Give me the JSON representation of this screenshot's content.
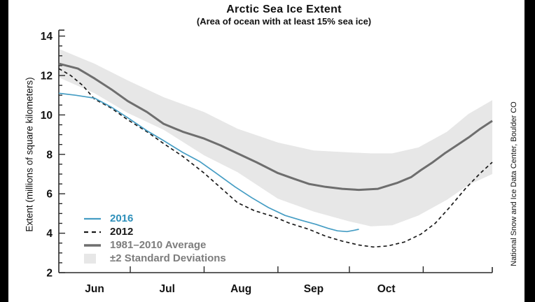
{
  "title": "Arctic Sea Ice Extent",
  "subtitle": "(Area of ocean with at least 15% sea ice)",
  "side_note": "National Snow and Ice Data Center, Boulder CO",
  "y_axis": {
    "label": "Extent (millions of square kilometers)",
    "min": 2,
    "max": 14,
    "major_step": 2,
    "minor_step": 0.5,
    "tick_labels": [
      "2",
      "4",
      "6",
      "8",
      "10",
      "12",
      "14"
    ]
  },
  "x_axis": {
    "month_labels": [
      "Jun",
      "Jul",
      "Aug",
      "Sep",
      "Oct"
    ],
    "tick_days": [
      30,
      61,
      92,
      122,
      153
    ],
    "month_label_days": [
      15,
      45.5,
      76.5,
      107,
      137.5
    ]
  },
  "colors": {
    "line_2016": "#459DC4",
    "text_2016": "#2D8FBA",
    "line_2012": "#1a1a1a",
    "line_average": "#6e6e6e",
    "band_fill": "#e7e7e7",
    "legend_gray_text": "#7d7d7d",
    "axis": "#2a2a2a"
  },
  "legend": {
    "items": [
      {
        "label": "2016",
        "swatch": "line-solid-blue"
      },
      {
        "label": "2012",
        "swatch": "line-dashed-black"
      },
      {
        "label": "1981–2010 Average",
        "swatch": "line-thick-gray"
      },
      {
        "label": "±2 Standard Deviations",
        "swatch": "filled-band"
      }
    ]
  },
  "chart_data": {
    "type": "line",
    "title": "Arctic Sea Ice Extent",
    "subtitle": "(Area of ocean with at least 15% sea ice)",
    "xlabel": "",
    "ylabel": "Extent (millions of square kilometers)",
    "x_unit": "days from Jun 1",
    "x_range": [
      0,
      182
    ],
    "ylim": [
      2,
      14
    ],
    "grid": false,
    "legend_position": "lower-left",
    "series": [
      {
        "name": "2016",
        "style": "solid",
        "width": 1.7,
        "points": [
          [
            0,
            11.1
          ],
          [
            7,
            11.0
          ],
          [
            15,
            10.85
          ],
          [
            22,
            10.4
          ],
          [
            29,
            9.85
          ],
          [
            37,
            9.2
          ],
          [
            44,
            8.7
          ],
          [
            52,
            8.1
          ],
          [
            59,
            7.65
          ],
          [
            66,
            7.05
          ],
          [
            74,
            6.35
          ],
          [
            81,
            5.8
          ],
          [
            88,
            5.3
          ],
          [
            95,
            4.9
          ],
          [
            102,
            4.65
          ],
          [
            108,
            4.45
          ],
          [
            113,
            4.25
          ],
          [
            117,
            4.12
          ],
          [
            121,
            4.08
          ],
          [
            124,
            4.15
          ],
          [
            126,
            4.2
          ]
        ]
      },
      {
        "name": "2012",
        "style": "dashed",
        "width": 1.7,
        "points": [
          [
            0,
            12.35
          ],
          [
            5,
            12.0
          ],
          [
            10,
            11.5
          ],
          [
            15,
            10.8
          ],
          [
            22,
            10.35
          ],
          [
            29,
            9.75
          ],
          [
            37,
            9.15
          ],
          [
            44,
            8.55
          ],
          [
            52,
            7.9
          ],
          [
            61,
            7.05
          ],
          [
            68,
            6.3
          ],
          [
            75,
            5.55
          ],
          [
            82,
            5.15
          ],
          [
            90,
            4.85
          ],
          [
            97,
            4.5
          ],
          [
            105,
            4.2
          ],
          [
            112,
            3.85
          ],
          [
            119,
            3.6
          ],
          [
            126,
            3.4
          ],
          [
            132,
            3.3
          ],
          [
            138,
            3.35
          ],
          [
            145,
            3.55
          ],
          [
            152,
            3.95
          ],
          [
            158,
            4.5
          ],
          [
            164,
            5.3
          ],
          [
            171,
            6.3
          ],
          [
            177,
            7.05
          ],
          [
            182,
            7.6
          ]
        ]
      },
      {
        "name": "1981-2010 Average",
        "style": "solid-thick",
        "width": 3,
        "points": [
          [
            0,
            12.6
          ],
          [
            8,
            12.35
          ],
          [
            15,
            11.85
          ],
          [
            22,
            11.3
          ],
          [
            29,
            10.7
          ],
          [
            37,
            10.15
          ],
          [
            44,
            9.55
          ],
          [
            52,
            9.15
          ],
          [
            61,
            8.8
          ],
          [
            68,
            8.45
          ],
          [
            75,
            8.05
          ],
          [
            83,
            7.6
          ],
          [
            92,
            7.05
          ],
          [
            99,
            6.75
          ],
          [
            105,
            6.5
          ],
          [
            112,
            6.35
          ],
          [
            119,
            6.25
          ],
          [
            126,
            6.2
          ],
          [
            134,
            6.25
          ],
          [
            142,
            6.55
          ],
          [
            148,
            6.85
          ],
          [
            152,
            7.2
          ],
          [
            157,
            7.6
          ],
          [
            162,
            8.05
          ],
          [
            167,
            8.45
          ],
          [
            172,
            8.85
          ],
          [
            177,
            9.3
          ],
          [
            182,
            9.7
          ]
        ]
      }
    ],
    "band": {
      "name": "±2 Standard Deviations",
      "upper": [
        [
          0,
          13.35
        ],
        [
          15,
          12.6
        ],
        [
          29,
          11.75
        ],
        [
          44,
          10.9
        ],
        [
          61,
          10.15
        ],
        [
          75,
          9.3
        ],
        [
          92,
          8.6
        ],
        [
          107,
          8.2
        ],
        [
          122,
          8.1
        ],
        [
          131,
          8.05
        ],
        [
          140,
          8.05
        ],
        [
          151,
          8.35
        ],
        [
          163,
          9.15
        ],
        [
          172,
          10.05
        ],
        [
          182,
          10.75
        ]
      ],
      "lower": [
        [
          0,
          11.9
        ],
        [
          15,
          11.1
        ],
        [
          29,
          10.1
        ],
        [
          44,
          9.25
        ],
        [
          61,
          7.95
        ],
        [
          75,
          7.1
        ],
        [
          92,
          5.75
        ],
        [
          107,
          5.1
        ],
        [
          122,
          4.6
        ],
        [
          131,
          4.35
        ],
        [
          140,
          4.4
        ],
        [
          151,
          4.9
        ],
        [
          163,
          5.7
        ],
        [
          172,
          6.45
        ],
        [
          182,
          7.0
        ]
      ]
    }
  }
}
